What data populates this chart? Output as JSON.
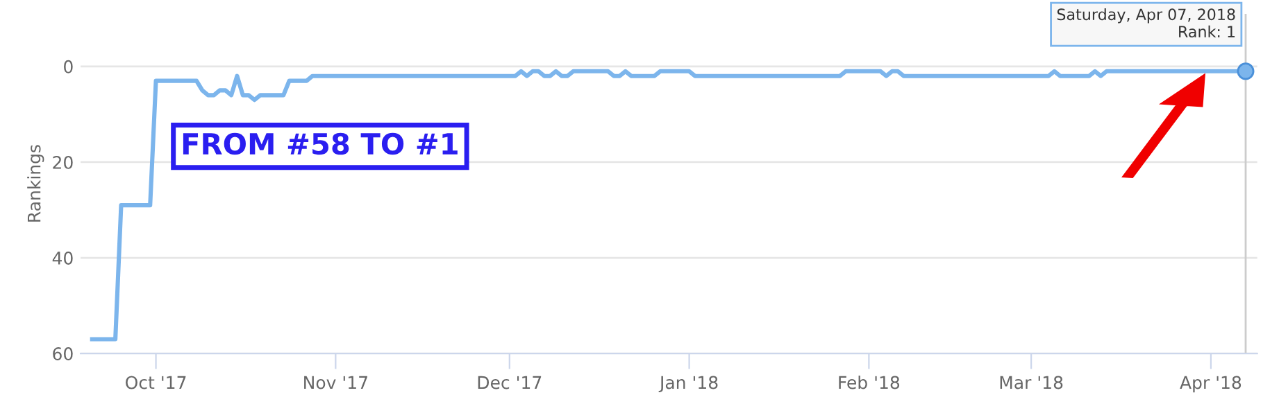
{
  "chart_data": {
    "type": "line",
    "ylabel": "Rankings",
    "x": [
      "2017-09-20",
      "2017-09-24",
      "2017-09-25",
      "2017-09-30",
      "2017-10-01",
      "2017-10-08",
      "2017-10-09",
      "2017-10-10",
      "2017-10-11",
      "2017-10-12",
      "2017-10-13",
      "2017-10-14",
      "2017-10-15",
      "2017-10-16",
      "2017-10-17",
      "2017-10-18",
      "2017-10-19",
      "2017-10-23",
      "2017-10-24",
      "2017-10-27",
      "2017-10-28",
      "2017-12-02",
      "2017-12-03",
      "2017-12-04",
      "2017-12-05",
      "2017-12-06",
      "2017-12-07",
      "2017-12-08",
      "2017-12-09",
      "2017-12-10",
      "2017-12-11",
      "2017-12-12",
      "2017-12-18",
      "2017-12-19",
      "2017-12-20",
      "2017-12-21",
      "2017-12-22",
      "2017-12-26",
      "2017-12-27",
      "2018-01-01",
      "2018-01-02",
      "2018-01-27",
      "2018-01-28",
      "2018-02-03",
      "2018-02-04",
      "2018-02-05",
      "2018-02-06",
      "2018-02-07",
      "2018-03-04",
      "2018-03-05",
      "2018-03-06",
      "2018-03-11",
      "2018-03-12",
      "2018-03-13",
      "2018-03-14",
      "2018-04-07"
    ],
    "series": [
      {
        "color": "#7cb5ec",
        "values": [
          57,
          57,
          29,
          29,
          3,
          3,
          5,
          6,
          6,
          5,
          5,
          6,
          2,
          6,
          6,
          7,
          6,
          6,
          3,
          3,
          2,
          2,
          1,
          2,
          1,
          1,
          2,
          2,
          1,
          2,
          2,
          1,
          1,
          2,
          2,
          1,
          2,
          2,
          1,
          1,
          2,
          2,
          1,
          1,
          2,
          1,
          1,
          2,
          2,
          1,
          2,
          2,
          1,
          2,
          1,
          1
        ]
      }
    ],
    "ylim": [
      60,
      -11
    ],
    "yticks": [
      0,
      20,
      40,
      60
    ],
    "xlim": [
      "2017-09-18",
      "2018-04-09"
    ],
    "xticks": [
      {
        "value": "2017-10-01",
        "label": "Oct '17"
      },
      {
        "value": "2017-11-01",
        "label": "Nov '17"
      },
      {
        "value": "2017-12-01",
        "label": "Dec '17"
      },
      {
        "value": "2018-01-01",
        "label": "Jan '18"
      },
      {
        "value": "2018-02-01",
        "label": "Feb '18"
      },
      {
        "value": "2018-03-01",
        "label": "Mar '18"
      },
      {
        "value": "2018-04-01",
        "label": "Apr '18"
      }
    ],
    "grid": "y",
    "marker": "none",
    "line_style": "solid",
    "legend": false,
    "ref_lines": [
      {
        "axis": "x",
        "value": "2018-04-07",
        "label": null,
        "color": "#cccccc"
      }
    ],
    "annotations": [
      "FROM #58 TO #1",
      {
        "text": "Saturday, Apr 07, 2018\nRank: 1",
        "x": "2018-04-07",
        "y": 1
      }
    ]
  }
}
